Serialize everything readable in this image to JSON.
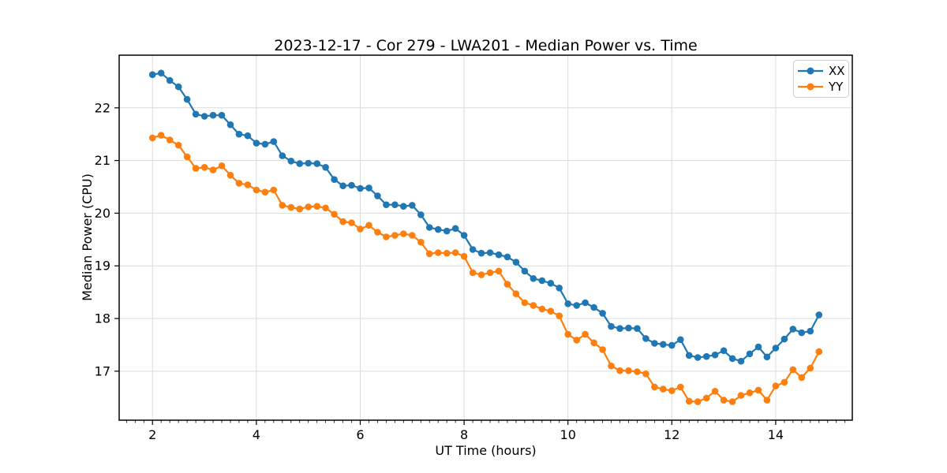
{
  "chart_data": {
    "type": "line",
    "title": "2023-12-17 - Cor 279 - LWA201 - Median Power vs. Time",
    "xlabel": "UT Time (hours)",
    "ylabel": "Median Power (CPU)",
    "xlim": [
      1.358,
      15.475
    ],
    "ylim": [
      16.07,
      23.0
    ],
    "xticks": [
      2,
      4,
      6,
      8,
      10,
      12,
      14
    ],
    "yticks": [
      17,
      18,
      19,
      20,
      21,
      22
    ],
    "x_minor_step": 0.16667,
    "grid": true,
    "grid_color": "#dcdcdc",
    "legend_position": "upper right",
    "x": [
      2.0,
      2.167,
      2.333,
      2.5,
      2.667,
      2.833,
      3.0,
      3.167,
      3.333,
      3.5,
      3.667,
      3.833,
      4.0,
      4.167,
      4.333,
      4.5,
      4.667,
      4.833,
      5.0,
      5.167,
      5.333,
      5.5,
      5.667,
      5.833,
      6.0,
      6.167,
      6.333,
      6.5,
      6.667,
      6.833,
      7.0,
      7.167,
      7.333,
      7.5,
      7.667,
      7.833,
      8.0,
      8.167,
      8.333,
      8.5,
      8.667,
      8.833,
      9.0,
      9.167,
      9.333,
      9.5,
      9.667,
      9.833,
      10.0,
      10.167,
      10.333,
      10.5,
      10.667,
      10.833,
      11.0,
      11.167,
      11.333,
      11.5,
      11.667,
      11.833,
      12.0,
      12.167,
      12.333,
      12.5,
      12.667,
      12.833,
      13.0,
      13.167,
      13.333,
      13.5,
      13.667,
      13.833,
      14.0,
      14.167,
      14.333,
      14.5,
      14.667,
      14.833
    ],
    "series": [
      {
        "name": "XX",
        "color": "#1f77b4",
        "values": [
          22.63,
          22.66,
          22.52,
          22.4,
          22.16,
          21.88,
          21.84,
          21.86,
          21.86,
          21.68,
          21.5,
          21.47,
          21.33,
          21.31,
          21.36,
          21.09,
          20.99,
          20.94,
          20.95,
          20.94,
          20.87,
          20.64,
          20.52,
          20.53,
          20.47,
          20.48,
          20.33,
          20.16,
          20.16,
          20.13,
          20.15,
          19.97,
          19.73,
          19.69,
          19.66,
          19.71,
          19.58,
          19.31,
          19.24,
          19.25,
          19.21,
          19.17,
          19.07,
          18.9,
          18.76,
          18.72,
          18.67,
          18.58,
          18.28,
          18.25,
          18.3,
          18.21,
          18.1,
          17.85,
          17.81,
          17.82,
          17.81,
          17.62,
          17.53,
          17.51,
          17.49,
          17.6,
          17.3,
          17.26,
          17.28,
          17.31,
          17.39,
          17.24,
          17.19,
          17.33,
          17.46,
          17.27,
          17.44,
          17.61,
          17.8,
          17.73,
          17.76,
          18.07
        ]
      },
      {
        "name": "YY",
        "color": "#ff7f0e",
        "values": [
          21.43,
          21.48,
          21.39,
          21.29,
          21.07,
          20.85,
          20.87,
          20.82,
          20.9,
          20.72,
          20.57,
          20.54,
          20.44,
          20.4,
          20.44,
          20.15,
          20.11,
          20.08,
          20.12,
          20.13,
          20.1,
          19.98,
          19.84,
          19.82,
          19.7,
          19.77,
          19.64,
          19.55,
          19.58,
          19.61,
          19.58,
          19.45,
          19.23,
          19.25,
          19.24,
          19.25,
          19.18,
          18.87,
          18.83,
          18.87,
          18.9,
          18.65,
          18.47,
          18.3,
          18.25,
          18.18,
          18.14,
          18.05,
          17.7,
          17.59,
          17.7,
          17.54,
          17.41,
          17.1,
          17.01,
          17.01,
          16.99,
          16.95,
          16.7,
          16.66,
          16.63,
          16.7,
          16.43,
          16.42,
          16.49,
          16.62,
          16.45,
          16.42,
          16.54,
          16.59,
          16.64,
          16.45,
          16.72,
          16.79,
          17.03,
          16.88,
          17.06,
          17.37
        ]
      }
    ]
  }
}
